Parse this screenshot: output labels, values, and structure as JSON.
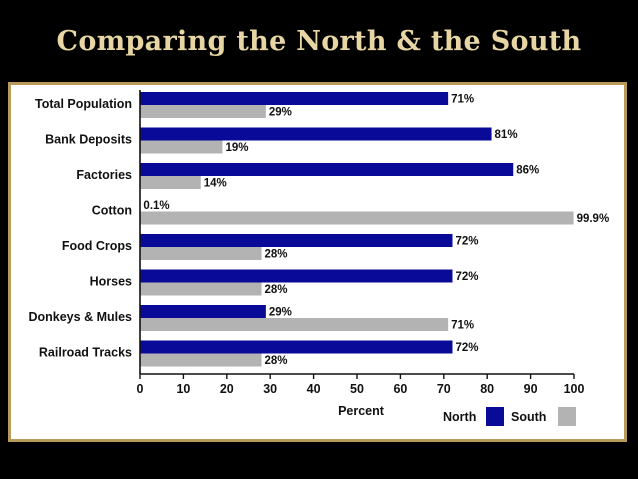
{
  "slide": {
    "title": "Comparing the North & the South"
  },
  "colors": {
    "north": "#0a0a99",
    "south": "#b3b3b3",
    "frame": "#b89b5a",
    "title": "#e7d6a4"
  },
  "chart_data": {
    "type": "bar",
    "orientation": "horizontal",
    "categories": [
      "Total Population",
      "Bank Deposits",
      "Factories",
      "Cotton",
      "Food Crops",
      "Horses",
      "Donkeys & Mules",
      "Railroad Tracks"
    ],
    "series": [
      {
        "name": "North",
        "values": [
          71,
          81,
          86,
          0.1,
          72,
          72,
          29,
          72
        ],
        "labels": [
          "71%",
          "81%",
          "86%",
          "0.1%",
          "72%",
          "72%",
          "29%",
          "72%"
        ]
      },
      {
        "name": "South",
        "values": [
          29,
          19,
          14,
          99.9,
          28,
          28,
          71,
          28
        ],
        "labels": [
          "29%",
          "19%",
          "14%",
          "99.9%",
          "28%",
          "28%",
          "71%",
          "28%"
        ]
      }
    ],
    "xlabel": "Percent",
    "xlim": [
      0,
      100
    ],
    "xticks": [
      "0",
      "10",
      "20",
      "30",
      "40",
      "50",
      "60",
      "70",
      "80",
      "90",
      "100"
    ],
    "legend": "bottom-right",
    "grid": false
  }
}
